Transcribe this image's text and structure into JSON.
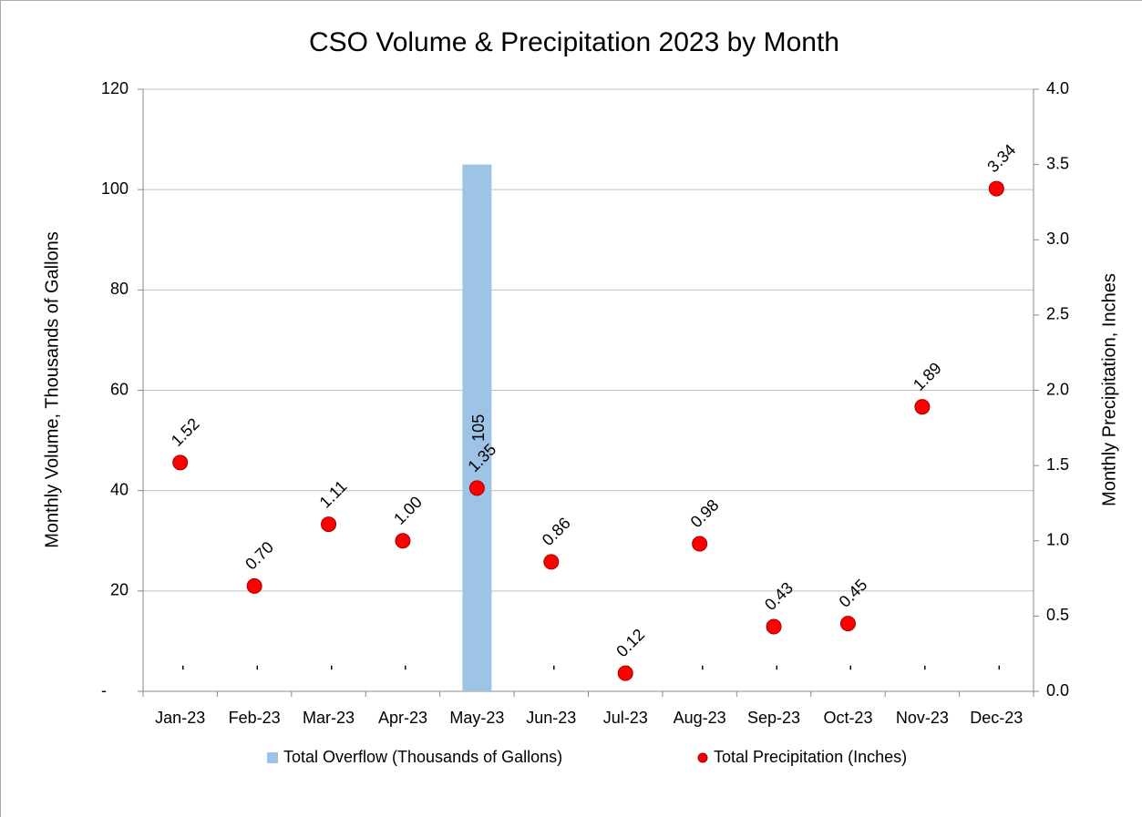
{
  "chart_data": {
    "type": "bar",
    "title": "CSO Volume & Precipitation 2023 by Month",
    "y_label": "Monthly Volume, Thousands of Gallons",
    "y2_label": "Monthly Precipitation, Inches",
    "categories": [
      "Jan-23",
      "Feb-23",
      "Mar-23",
      "Apr-23",
      "May-23",
      "Jun-23",
      "Jul-23",
      "Aug-23",
      "Sep-23",
      "Oct-23",
      "Nov-23",
      "Dec-23"
    ],
    "ylim": [
      0,
      120
    ],
    "yticks": [
      {
        "value": 0,
        "label": "-"
      },
      20,
      40,
      60,
      80,
      100,
      120
    ],
    "y2lim": [
      0,
      4
    ],
    "y2ticks": [
      {
        "value": 0,
        "label": "0.0"
      },
      {
        "value": 0.5,
        "label": "0.5"
      },
      {
        "value": 1,
        "label": "1.0"
      },
      {
        "value": 1.5,
        "label": "1.5"
      },
      {
        "value": 2,
        "label": "2.0"
      },
      {
        "value": 2.5,
        "label": "2.5"
      },
      {
        "value": 3,
        "label": "3.0"
      },
      {
        "value": 3.5,
        "label": "3.5"
      },
      {
        "value": 4,
        "label": "4.0"
      }
    ],
    "grid": true,
    "legend": "bottom",
    "series": [
      {
        "name": "Total Overflow (Thousands of Gallons)",
        "type": "bar",
        "color": "#9dc3e6",
        "values": [
          0,
          0,
          0,
          0,
          105,
          0,
          0,
          0,
          0,
          0,
          0,
          0
        ],
        "value_labels": [
          "-",
          "-",
          "-",
          "-",
          "105",
          "-",
          "-",
          "-",
          "-",
          "-",
          "-",
          "-"
        ]
      },
      {
        "name": "Total Precipitation (Inches)",
        "type": "scatter",
        "axis": "y2",
        "color": "#ff0000",
        "values": [
          1.52,
          0.7,
          1.11,
          1.0,
          1.35,
          0.86,
          0.12,
          0.98,
          0.43,
          0.45,
          1.89,
          3.34
        ],
        "value_labels": [
          "1.52",
          "0.70",
          "1.11",
          "1.00",
          "1.35",
          "0.86",
          "0.12",
          "0.98",
          "0.43",
          "0.45",
          "1.89",
          "3.34"
        ]
      }
    ]
  }
}
